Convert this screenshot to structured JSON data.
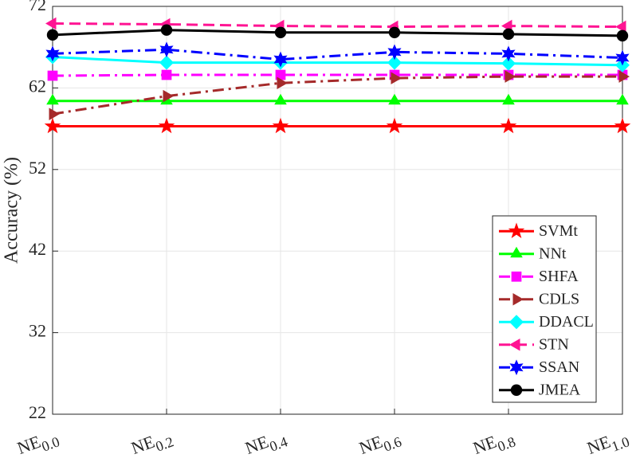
{
  "chart_data": {
    "type": "line",
    "ylabel": "Accuracy (%)",
    "categories": [
      "NE0.0",
      "NE0.2",
      "NE0.4",
      "NE0.6",
      "NE0.8",
      "NE1.0"
    ],
    "ylim": [
      22,
      72
    ],
    "yticks": [
      22,
      32,
      42,
      52,
      62,
      72
    ],
    "grid": true,
    "legend": "lower right",
    "series": [
      {
        "name": "SVMt",
        "color": "#ff0000",
        "marker": "star",
        "dash": "solid",
        "values": [
          57.3,
          57.3,
          57.3,
          57.3,
          57.3,
          57.3
        ]
      },
      {
        "name": "NNt",
        "color": "#00ff00",
        "marker": "triangle-up",
        "dash": "solid",
        "values": [
          60.4,
          60.4,
          60.4,
          60.4,
          60.4,
          60.4
        ]
      },
      {
        "name": "SHFA",
        "color": "#ff00ff",
        "marker": "square",
        "dash": "dashdot",
        "values": [
          63.5,
          63.6,
          63.6,
          63.6,
          63.6,
          63.6
        ]
      },
      {
        "name": "CDLS",
        "color": "#a52a2a",
        "marker": "triangle-right",
        "dash": "dashdot",
        "values": [
          58.8,
          61.0,
          62.6,
          63.2,
          63.4,
          63.4
        ]
      },
      {
        "name": "DDACL",
        "color": "#00ffff",
        "marker": "diamond",
        "dash": "solid",
        "values": [
          65.8,
          65.1,
          65.1,
          65.1,
          65.0,
          64.8
        ]
      },
      {
        "name": "STN",
        "color": "#ff1493",
        "marker": "triangle-left",
        "dash": "dashed",
        "values": [
          69.9,
          69.8,
          69.6,
          69.5,
          69.6,
          69.5
        ]
      },
      {
        "name": "SSAN",
        "color": "#0000ff",
        "marker": "hexagram",
        "dash": "dashdot",
        "values": [
          66.2,
          66.7,
          65.5,
          66.4,
          66.2,
          65.7
        ]
      },
      {
        "name": "JMEA",
        "color": "#000000",
        "marker": "circle",
        "dash": "solid",
        "values": [
          68.5,
          69.1,
          68.8,
          68.8,
          68.6,
          68.4
        ]
      }
    ]
  }
}
